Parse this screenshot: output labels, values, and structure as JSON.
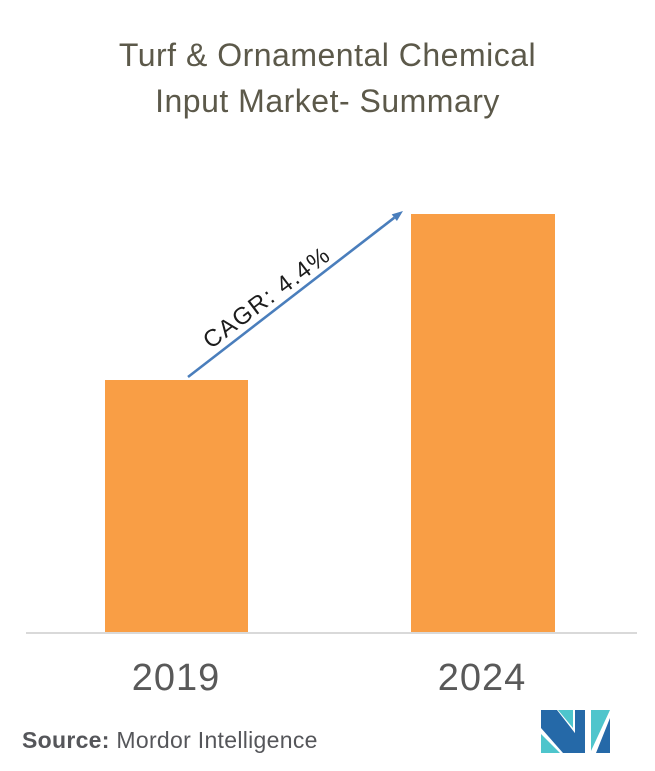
{
  "title": {
    "line1": "Turf & Ornamental Chemical",
    "line2": "Input Market- Summary"
  },
  "chart_data": {
    "type": "bar",
    "title": "Turf & Ornamental Chemical Input Market- Summary",
    "categories": [
      "2019",
      "2024"
    ],
    "values": [
      252,
      418
    ],
    "values_note": "bar heights in screen pixels; chart displays no value axis (illustrative growth comparison)",
    "annotation": {
      "text": "CAGR: 4.4%",
      "from_category": "2019",
      "to_category": "2024"
    },
    "bar_color": "#F99E45",
    "arrow_color": "#4A7EBC",
    "axis_line_color": "#D9D9D9",
    "xlabel": "",
    "ylabel": "",
    "grid": false,
    "legend": false
  },
  "source": {
    "label": "Source:",
    "text": " Mordor Intelligence"
  },
  "logo": {
    "name": "Mordor Intelligence monogram",
    "colors": {
      "dark_blue": "#2569A8",
      "teal": "#4EC5CC"
    }
  },
  "colors": {
    "title_text": "#5C594A",
    "axis_label_text": "#595959",
    "annotation_text": "#1C1C1C",
    "background": "#FFFFFF"
  }
}
